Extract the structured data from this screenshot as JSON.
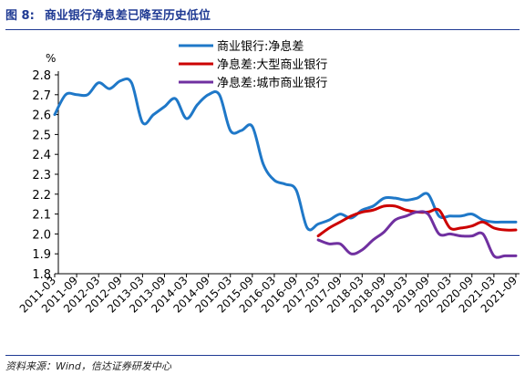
{
  "caption": {
    "label": "图 8:",
    "text": "商业银行净息差已降至历史低位"
  },
  "source": "资料来源：Wind，信达证券研发中心",
  "chart_data": {
    "type": "line",
    "title": "",
    "xlabel": "",
    "ylabel": "%",
    "ylim": [
      1.8,
      2.8
    ],
    "yticks": [
      "1.8",
      "1.9",
      "2.0",
      "2.1",
      "2.2",
      "2.3",
      "2.4",
      "2.5",
      "2.6",
      "2.7",
      "2.8"
    ],
    "xticks": [
      "2011-03",
      "2011-09",
      "2012-03",
      "2012-09",
      "2013-03",
      "2013-09",
      "2014-03",
      "2014-09",
      "2015-03",
      "2015-09",
      "2016-03",
      "2016-09",
      "2017-03",
      "2017-09",
      "2018-03",
      "2018-09",
      "2019-03",
      "2019-09",
      "2020-03",
      "2020-09",
      "2021-03",
      "2021-09"
    ],
    "grid": false,
    "legend_position": "top-center",
    "series": [
      {
        "name": "商业银行:净息差",
        "color": "#1f78c8",
        "x": [
          "2011-03",
          "2011-06",
          "2011-09",
          "2011-12",
          "2012-03",
          "2012-06",
          "2012-09",
          "2012-12",
          "2013-03",
          "2013-06",
          "2013-09",
          "2013-12",
          "2014-03",
          "2014-06",
          "2014-09",
          "2014-12",
          "2015-03",
          "2015-06",
          "2015-09",
          "2015-12",
          "2016-03",
          "2016-06",
          "2016-09",
          "2016-12",
          "2017-03",
          "2017-06",
          "2017-09",
          "2017-12",
          "2018-03",
          "2018-06",
          "2018-09",
          "2018-12",
          "2019-03",
          "2019-06",
          "2019-09",
          "2019-12",
          "2020-03",
          "2020-06",
          "2020-09",
          "2020-12",
          "2021-03",
          "2021-06",
          "2021-09"
        ],
        "values": [
          2.6,
          2.7,
          2.7,
          2.7,
          2.76,
          2.73,
          2.77,
          2.76,
          2.56,
          2.6,
          2.64,
          2.68,
          2.58,
          2.65,
          2.7,
          2.7,
          2.52,
          2.52,
          2.54,
          2.35,
          2.27,
          2.25,
          2.22,
          2.03,
          2.05,
          2.07,
          2.1,
          2.08,
          2.12,
          2.14,
          2.18,
          2.18,
          2.17,
          2.18,
          2.2,
          2.09,
          2.09,
          2.09,
          2.1,
          2.07,
          2.06,
          2.06,
          2.06
        ]
      },
      {
        "name": "净息差:大型商业银行",
        "color": "#cc0000",
        "x": [
          "2017-03",
          "2017-06",
          "2017-09",
          "2017-12",
          "2018-03",
          "2018-06",
          "2018-09",
          "2018-12",
          "2019-03",
          "2019-06",
          "2019-09",
          "2019-12",
          "2020-03",
          "2020-06",
          "2020-09",
          "2020-12",
          "2021-03",
          "2021-06",
          "2021-09"
        ],
        "values": [
          1.99,
          2.03,
          2.06,
          2.09,
          2.11,
          2.12,
          2.14,
          2.14,
          2.12,
          2.11,
          2.11,
          2.12,
          2.03,
          2.03,
          2.04,
          2.06,
          2.03,
          2.02,
          2.02
        ]
      },
      {
        "name": "净息差:城市商业银行",
        "color": "#7030a0",
        "x": [
          "2017-03",
          "2017-06",
          "2017-09",
          "2017-12",
          "2018-03",
          "2018-06",
          "2018-09",
          "2018-12",
          "2019-03",
          "2019-06",
          "2019-09",
          "2019-12",
          "2020-03",
          "2020-06",
          "2020-09",
          "2020-12",
          "2021-03",
          "2021-06",
          "2021-09"
        ],
        "values": [
          1.97,
          1.95,
          1.95,
          1.9,
          1.92,
          1.97,
          2.01,
          2.07,
          2.09,
          2.11,
          2.1,
          2.0,
          2.0,
          1.99,
          1.99,
          2.0,
          1.89,
          1.89,
          1.89
        ]
      }
    ]
  }
}
